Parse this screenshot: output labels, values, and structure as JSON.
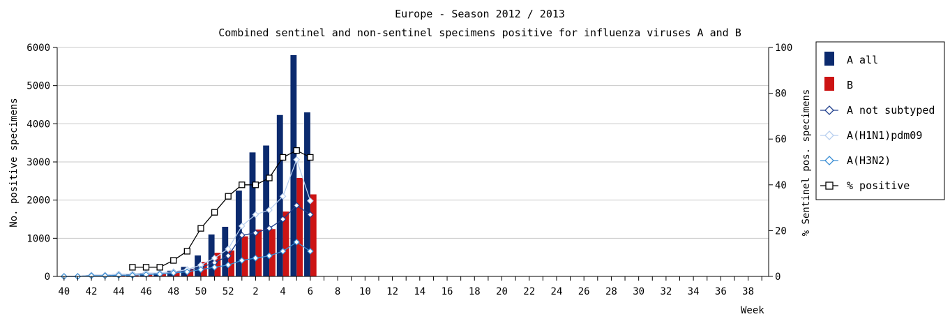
{
  "chart_data": {
    "type": "bar",
    "title": "Europe - Season 2012 / 2013",
    "subtitle": "Combined sentinel and non-sentinel specimens positive for influenza viruses A and B",
    "xlabel": "Week",
    "ylabel_left": "No. positive specimens",
    "ylabel_right": "% Sentinel pos. specimens",
    "ylim_left": [
      0,
      6000
    ],
    "ylim_right": [
      0,
      100
    ],
    "yticks_left": [
      "0",
      "1000",
      "2000",
      "3000",
      "4000",
      "5000",
      "6000"
    ],
    "yticks_right": [
      "0",
      "20",
      "40",
      "60",
      "80",
      "100"
    ],
    "grid": true,
    "legend_position": "right",
    "weeks": [
      "40",
      "41",
      "42",
      "43",
      "44",
      "45",
      "46",
      "47",
      "48",
      "49",
      "50",
      "51",
      "52",
      "1",
      "2",
      "3",
      "4",
      "5",
      "6",
      "7",
      "8",
      "9",
      "10",
      "11",
      "12",
      "13",
      "14",
      "15",
      "16",
      "17",
      "18",
      "19",
      "20",
      "21",
      "22",
      "23",
      "24",
      "25",
      "26",
      "27",
      "28",
      "29",
      "30",
      "31",
      "32",
      "33",
      "34",
      "35",
      "36",
      "37",
      "38",
      "39"
    ],
    "x_tick_labels": [
      "40",
      "42",
      "44",
      "46",
      "48",
      "50",
      "52",
      "2",
      "4",
      "6",
      "8",
      "10",
      "12",
      "14",
      "16",
      "18",
      "20",
      "22",
      "24",
      "26",
      "28",
      "30",
      "32",
      "34",
      "36",
      "38"
    ],
    "bar_series": [
      {
        "name": "A all",
        "color": "#0b2a6e",
        "values": [
          5,
          10,
          15,
          25,
          40,
          60,
          70,
          90,
          150,
          250,
          550,
          1100,
          1300,
          2250,
          3250,
          3430,
          4230,
          5800,
          4300,
          null,
          null,
          null,
          null,
          null,
          null,
          null,
          null,
          null,
          null,
          null,
          null,
          null,
          null,
          null,
          null,
          null,
          null,
          null,
          null,
          null,
          null,
          null,
          null,
          null,
          null,
          null,
          null,
          null,
          null,
          null,
          null,
          null
        ]
      },
      {
        "name": "B",
        "color": "#cc1414",
        "values": [
          5,
          8,
          12,
          20,
          30,
          45,
          60,
          80,
          130,
          200,
          380,
          620,
          680,
          1050,
          1230,
          1240,
          1700,
          2580,
          2150,
          null,
          null,
          null,
          null,
          null,
          null,
          null,
          null,
          null,
          null,
          null,
          null,
          null,
          null,
          null,
          null,
          null,
          null,
          null,
          null,
          null,
          null,
          null,
          null,
          null,
          null,
          null,
          null,
          null,
          null,
          null,
          null,
          null
        ]
      }
    ],
    "line_series": [
      {
        "name": "A not subtyped",
        "color": "#1f3e8c",
        "marker": "diamond",
        "values": [
          0,
          0,
          0.5,
          0.5,
          1,
          1,
          1.5,
          1.5,
          2,
          2.5,
          4,
          6,
          9,
          18,
          19,
          21,
          25,
          31,
          27,
          null,
          null,
          null,
          null,
          null,
          null,
          null,
          null,
          null,
          null,
          null,
          null,
          null,
          null,
          null,
          null,
          null,
          null,
          null,
          null,
          null,
          null,
          null,
          null,
          null,
          null,
          null,
          null,
          null,
          null,
          null,
          null,
          null
        ]
      },
      {
        "name": "A(H1N1)pdm09",
        "color": "#b8cfef",
        "marker": "diamond",
        "values": [
          0,
          0,
          0.5,
          0.5,
          1,
          1,
          1.5,
          1.5,
          2,
          3,
          5,
          8,
          12,
          22,
          27,
          29,
          35,
          51,
          33,
          null,
          null,
          null,
          null,
          null,
          null,
          null,
          null,
          null,
          null,
          null,
          null,
          null,
          null,
          null,
          null,
          null,
          null,
          null,
          null,
          null,
          null,
          null,
          null,
          null,
          null,
          null,
          null,
          null,
          null,
          null,
          null,
          null
        ]
      },
      {
        "name": "A(H3N2)",
        "color": "#3a8ed4",
        "marker": "diamond",
        "values": [
          0,
          0,
          0.3,
          0.3,
          0.5,
          0.5,
          0.8,
          1,
          1.5,
          2,
          3,
          4,
          5,
          7,
          8,
          9,
          11,
          15,
          11,
          null,
          null,
          null,
          null,
          null,
          null,
          null,
          null,
          null,
          null,
          null,
          null,
          null,
          null,
          null,
          null,
          null,
          null,
          null,
          null,
          null,
          null,
          null,
          null,
          null,
          null,
          null,
          null,
          null,
          null,
          null,
          null,
          null
        ]
      },
      {
        "name": "% positive",
        "color": "#000000",
        "marker": "square",
        "values": [
          null,
          null,
          null,
          null,
          null,
          4,
          4,
          4,
          7,
          11,
          21,
          28,
          35,
          40,
          40,
          43,
          52,
          55,
          52,
          null,
          null,
          null,
          null,
          null,
          null,
          null,
          null,
          null,
          null,
          null,
          null,
          null,
          null,
          null,
          null,
          null,
          null,
          null,
          null,
          null,
          null,
          null,
          null,
          null,
          null,
          null,
          null,
          null,
          null,
          null,
          null,
          null
        ]
      }
    ]
  }
}
